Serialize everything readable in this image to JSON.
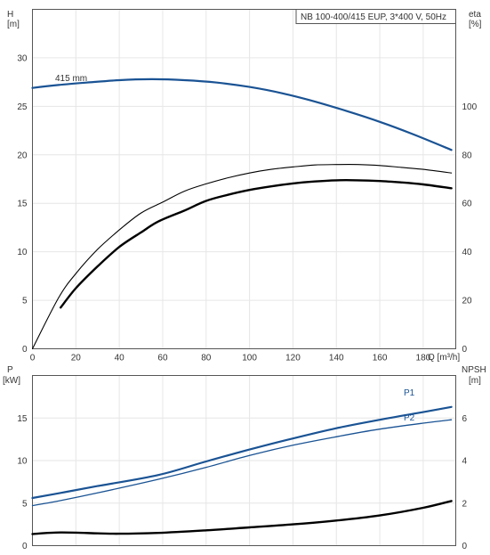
{
  "colors": {
    "blue": "#1a5394",
    "black": "#000000",
    "grid": "#e6e6e6",
    "frame": "#555555"
  },
  "chart_data": [
    {
      "type": "line",
      "title": "NB 100-400/415 EUP, 3*400 V, 50Hz",
      "grid": true,
      "xlabel": "Q [m³/h]",
      "xlim": [
        0,
        195
      ],
      "x_ticks": [
        "0",
        "20",
        "40",
        "60",
        "80",
        "100",
        "120",
        "140",
        "160",
        "180"
      ],
      "ylabel": [
        "H",
        "[m]"
      ],
      "ylim": [
        0,
        35
      ],
      "y_ticks": [
        "0",
        "5",
        "10",
        "15",
        "20",
        "25",
        "30"
      ],
      "y2label": [
        "eta",
        "[%]"
      ],
      "y2lim": [
        0,
        140
      ],
      "y2_ticks": [
        "0",
        "20",
        "40",
        "60",
        "80",
        "100"
      ],
      "annotation": "415 mm",
      "series": [
        {
          "name": "415 mm",
          "axis": "left",
          "color": "#1a5394",
          "x": [
            0,
            12,
            25,
            40,
            55,
            70,
            85,
            100,
            115,
            130,
            145,
            160,
            175,
            193
          ],
          "y": [
            26.9,
            27.2,
            27.45,
            27.7,
            27.8,
            27.7,
            27.45,
            27.0,
            26.35,
            25.5,
            24.5,
            23.4,
            22.15,
            20.5
          ]
        },
        {
          "axis": "right",
          "color": "#000000",
          "x": [
            0,
            12,
            20,
            30,
            40,
            50,
            60,
            70,
            80,
            90,
            100,
            110,
            120,
            130,
            140,
            150,
            160,
            170,
            180,
            193
          ],
          "y": [
            0,
            21,
            31,
            41,
            49,
            56,
            60.5,
            65,
            68,
            70.5,
            72.5,
            74,
            75,
            75.8,
            76,
            76,
            75.6,
            74.8,
            74,
            72.5
          ]
        },
        {
          "axis": "right",
          "color": "#000000",
          "x": [
            13,
            20,
            30,
            40,
            50,
            58,
            70,
            80,
            90,
            100,
            110,
            120,
            130,
            140,
            150,
            160,
            170,
            180,
            193
          ],
          "y": [
            17,
            25,
            34,
            42,
            48,
            52.5,
            57,
            61,
            63.5,
            65.5,
            67,
            68.2,
            69,
            69.5,
            69.5,
            69.2,
            68.6,
            67.8,
            66.2
          ]
        }
      ]
    },
    {
      "type": "line",
      "grid": true,
      "xlim": [
        0,
        195
      ],
      "ylabel": [
        "P",
        "[kW]"
      ],
      "ylim": [
        0,
        20
      ],
      "y_ticks": [
        "0",
        "5",
        "10",
        "15"
      ],
      "y2label": [
        "NPSH",
        "[m]"
      ],
      "y2lim": [
        0,
        8
      ],
      "y2_ticks": [
        "0",
        "2",
        "4",
        "6"
      ],
      "series": [
        {
          "name": "P1",
          "axis": "left",
          "color": "#1a5394",
          "x": [
            0,
            13,
            30,
            58,
            80,
            100,
            120,
            140,
            160,
            180,
            193
          ],
          "y": [
            5.6,
            6.2,
            7.0,
            8.3,
            9.9,
            11.3,
            12.6,
            13.8,
            14.8,
            15.7,
            16.3
          ]
        },
        {
          "name": "P2",
          "axis": "left",
          "color": "#1a5394",
          "x": [
            0,
            13,
            30,
            58,
            80,
            100,
            120,
            140,
            160,
            180,
            193
          ],
          "y": [
            4.7,
            5.3,
            6.2,
            7.8,
            9.2,
            10.6,
            11.8,
            12.8,
            13.7,
            14.4,
            14.8
          ]
        },
        {
          "axis": "right",
          "color": "#000000",
          "x": [
            0,
            13,
            30,
            40,
            58,
            80,
            100,
            120,
            140,
            160,
            180,
            193
          ],
          "y": [
            0.55,
            0.62,
            0.58,
            0.56,
            0.6,
            0.72,
            0.86,
            1.0,
            1.18,
            1.42,
            1.78,
            2.1
          ]
        }
      ]
    }
  ]
}
